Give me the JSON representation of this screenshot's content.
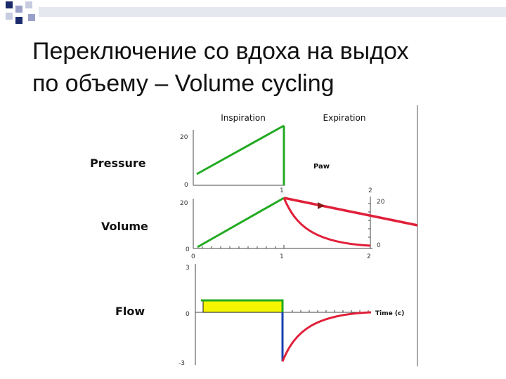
{
  "slide": {
    "title_line1": "Переключение со вдоха на выдох",
    "title_line2": "по объему – Volume cycling"
  },
  "diagram": {
    "header_inspiration": "Inspiration",
    "header_expiration": "Expiration",
    "pressure_label": "Pressure",
    "volume_label": "Volume",
    "flow_label": "Flow",
    "paw_label": "Paw",
    "time_label": "Time (c)",
    "pressure_ticks": {
      "top": "20",
      "bottom": "0"
    },
    "volume_ticks": {
      "top": "20",
      "bottom": "0",
      "right_top": "20",
      "right_bottom": "0"
    },
    "flow_ticks": {
      "top": "3",
      "zero": "0",
      "bottom": "-3"
    },
    "time_ticks": {
      "t0": "0",
      "t1": "1",
      "t2": "2"
    },
    "colors": {
      "inspiration": "#22aa22",
      "expiration": "#e0203a",
      "flow_fill": "#f5f500",
      "flow_drop": "#1a3fb0",
      "deco_dark": "#1a2a6a",
      "deco_light": "#c8cce0"
    }
  }
}
